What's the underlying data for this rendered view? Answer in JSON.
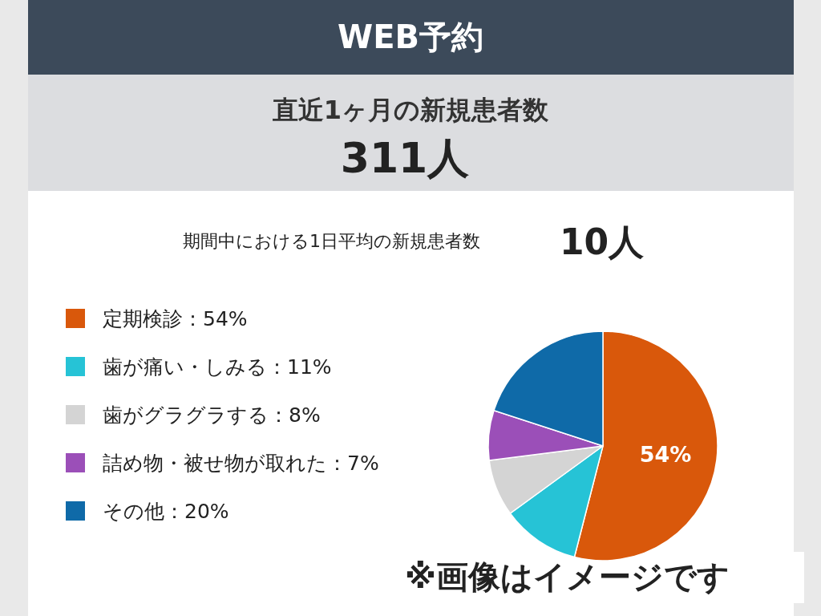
{
  "chart_data": {
    "type": "pie",
    "title": "WEB予約",
    "subtitle": "直近1ヶ月の新規患者数",
    "categories": [
      "定期検診：54%",
      "歯が痛い・しみる：11%",
      "歯がグラグラする：8%",
      "詰め物・被せ物が取れた：7%",
      "その他：20%"
    ],
    "values": [
      54,
      11,
      8,
      7,
      20
    ],
    "colors": [
      "#d9580b",
      "#26c3d6",
      "#d4d4d4",
      "#9b4fb8",
      "#0f6aa8"
    ],
    "value_labels": [
      "54%",
      null,
      null,
      null,
      null
    ],
    "legend": "left",
    "annotations": [
      "311人",
      "期間中における1日平均の新規患者数",
      "10人",
      "※画像はイメージです"
    ]
  }
}
